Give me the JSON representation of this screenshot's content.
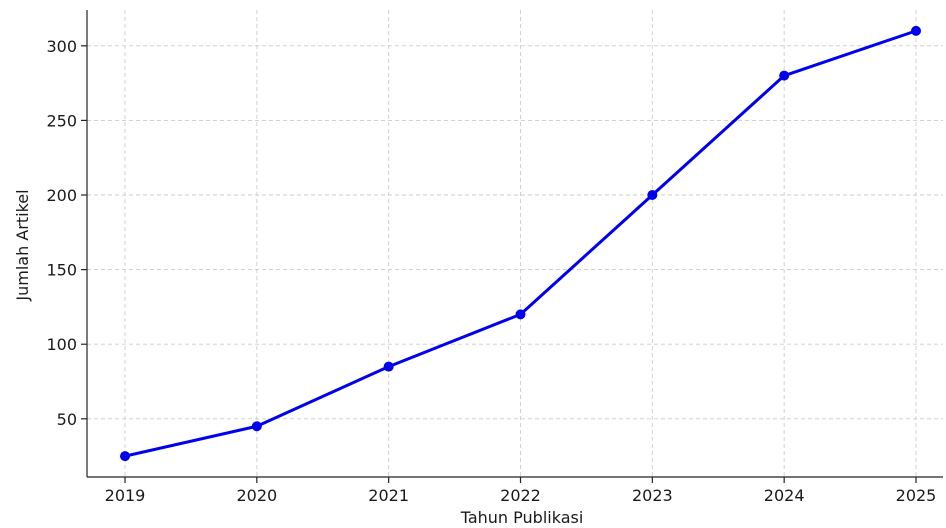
{
  "chart_data": {
    "type": "line",
    "title": "",
    "xlabel": "Tahun Publikasi",
    "ylabel": "Jumlah Artikel",
    "categories": [
      "2019",
      "2020",
      "2021",
      "2022",
      "2023",
      "2024",
      "2025"
    ],
    "series": [
      {
        "values": [
          25,
          45,
          85,
          120,
          200,
          280,
          310
        ],
        "color": "#0000ee",
        "marker": "circle"
      }
    ],
    "yticks": [
      50,
      100,
      150,
      200,
      250,
      300
    ],
    "ylim": [
      11,
      324
    ],
    "grid": true,
    "legend": "none"
  }
}
